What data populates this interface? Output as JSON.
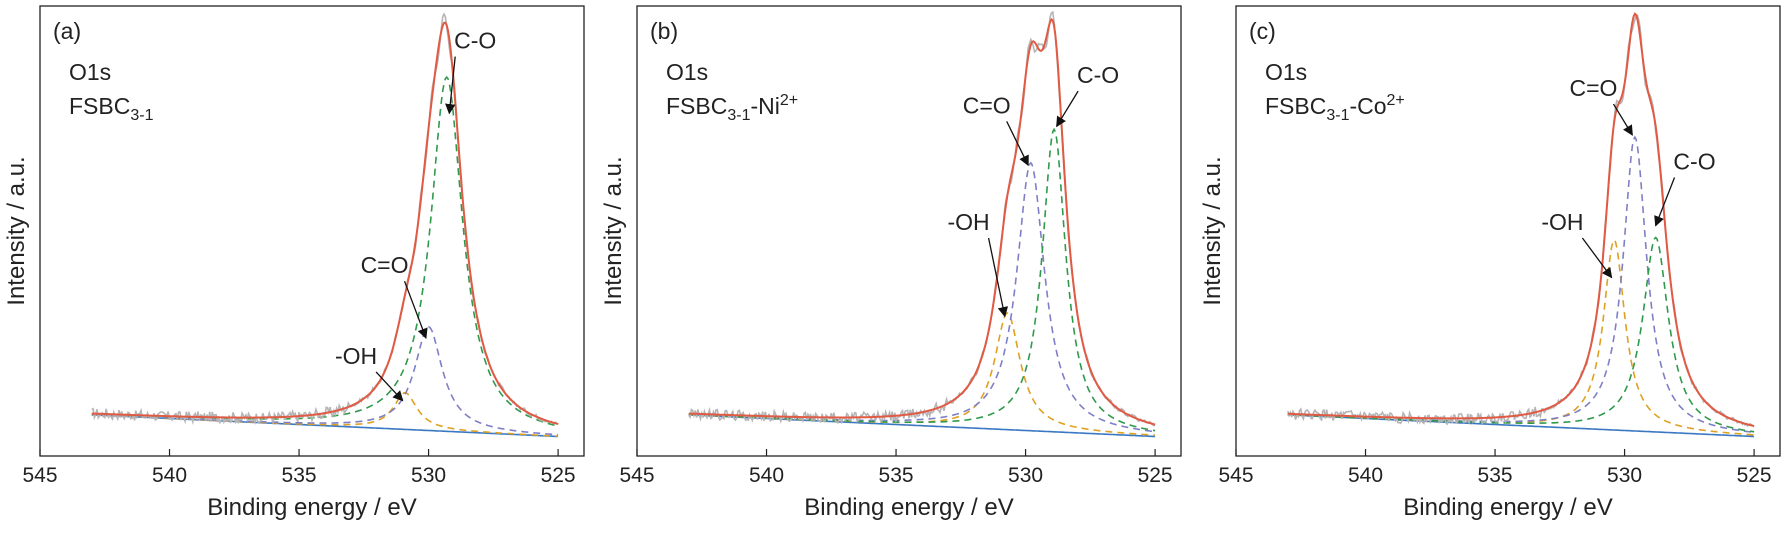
{
  "colors": {
    "raw": "#b5b5b5",
    "envelope": "#e05a44",
    "baseline": "#3a78c2",
    "oh": "#e0a020",
    "co_double": "#7f7fc8",
    "co_single": "#2f9a4c",
    "arrow": "#111111",
    "frame": "#222222"
  },
  "chart_data": [
    {
      "panel": "(a)",
      "label1": "O1s",
      "label2_main": "FSBC",
      "label2_sub": "3-1",
      "label2_sup": "",
      "type": "line",
      "xlabel": "Binding energy / eV",
      "ylabel": "Intensity / a.u.",
      "xlim": [
        545,
        524
      ],
      "xticks": [
        545,
        540,
        535,
        530,
        525
      ],
      "ylim": [
        0,
        1
      ],
      "x_range": [
        543,
        525
      ],
      "baseline": [
        0.072,
        0.022
      ],
      "peaks": [
        {
          "key": "oh",
          "name": "-OH",
          "center": 530.9,
          "fwhm": 1.1,
          "height": 0.085
        },
        {
          "key": "co_double",
          "name": "C=O",
          "center": 530.0,
          "fwhm": 1.3,
          "height": 0.24
        },
        {
          "key": "co_single",
          "name": "C-O",
          "center": 529.3,
          "fwhm": 1.5,
          "height": 0.82
        }
      ],
      "annotations": [
        {
          "text": "-OH",
          "label_x": 532.8,
          "label_y": 0.19,
          "tip_x": 531.0,
          "tip_y": 0.105
        },
        {
          "text": "C=O",
          "label_x": 531.7,
          "label_y": 0.4,
          "tip_x": 530.1,
          "tip_y": 0.25
        },
        {
          "text": "C-O",
          "label_x": 528.2,
          "label_y": 0.92,
          "tip_x": 529.2,
          "tip_y": 0.77
        }
      ]
    },
    {
      "panel": "(b)",
      "label1": "O1s",
      "label2_main": "FSBC",
      "label2_sub": "3-1",
      "label2_sup": "-Ni2+",
      "type": "line",
      "xlabel": "Binding energy / eV",
      "ylabel": "Intensity / a.u.",
      "xlim": [
        545,
        524
      ],
      "xticks": [
        545,
        540,
        535,
        530,
        525
      ],
      "ylim": [
        0,
        1
      ],
      "x_range": [
        543,
        525
      ],
      "baseline": [
        0.072,
        0.022
      ],
      "peaks": [
        {
          "key": "oh",
          "name": "-OH",
          "center": 530.7,
          "fwhm": 1.2,
          "height": 0.27
        },
        {
          "key": "co_double",
          "name": "C=O",
          "center": 529.8,
          "fwhm": 1.3,
          "height": 0.62
        },
        {
          "key": "co_single",
          "name": "C-O",
          "center": 528.9,
          "fwhm": 1.1,
          "height": 0.7
        }
      ],
      "annotations": [
        {
          "text": "-OH",
          "label_x": 532.2,
          "label_y": 0.5,
          "tip_x": 530.8,
          "tip_y": 0.3
        },
        {
          "text": "C=O",
          "label_x": 531.5,
          "label_y": 0.77,
          "tip_x": 529.9,
          "tip_y": 0.65
        },
        {
          "text": "C-O",
          "label_x": 527.2,
          "label_y": 0.84,
          "tip_x": 528.8,
          "tip_y": 0.74
        }
      ]
    },
    {
      "panel": "(c)",
      "label1": "O1s",
      "label2_main": "FSBC",
      "label2_sub": "3-1",
      "label2_sup": "-Co2+",
      "type": "line",
      "xlabel": "Binding energy / eV",
      "ylabel": "Intensity / a.u.",
      "xlim": [
        545,
        524
      ],
      "xticks": [
        545,
        540,
        535,
        530,
        525
      ],
      "ylim": [
        0,
        1
      ],
      "x_range": [
        543,
        525
      ],
      "baseline": [
        0.072,
        0.022
      ],
      "peaks": [
        {
          "key": "oh",
          "name": "-OH",
          "center": 530.4,
          "fwhm": 1.0,
          "height": 0.44
        },
        {
          "key": "co_double",
          "name": "C=O",
          "center": 529.6,
          "fwhm": 1.1,
          "height": 0.68
        },
        {
          "key": "co_single",
          "name": "C-O",
          "center": 528.8,
          "fwhm": 1.2,
          "height": 0.45
        }
      ],
      "annotations": [
        {
          "text": "-OH",
          "label_x": 532.4,
          "label_y": 0.5,
          "tip_x": 530.5,
          "tip_y": 0.39
        },
        {
          "text": "C=O",
          "label_x": 531.2,
          "label_y": 0.81,
          "tip_x": 529.7,
          "tip_y": 0.72
        },
        {
          "text": "C-O",
          "label_x": 527.3,
          "label_y": 0.64,
          "tip_x": 528.8,
          "tip_y": 0.51
        }
      ]
    }
  ]
}
